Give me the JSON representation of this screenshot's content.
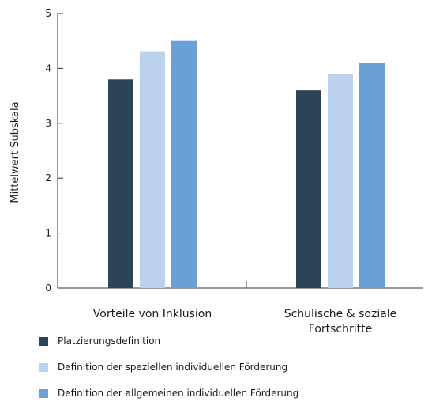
{
  "chart_data": {
    "type": "bar",
    "title": "",
    "ylabel": "Mittelwert Subskala",
    "xlabel": "",
    "ylim": [
      0,
      5
    ],
    "yticks": [
      0,
      1,
      2,
      3,
      4,
      5
    ],
    "categories": [
      [
        "Vorteile von Inklusion"
      ],
      [
        "Schulische & soziale",
        "Fortschritte"
      ]
    ],
    "series": [
      {
        "name": "Platzierungsdefinition",
        "color": "#2c4457",
        "values": [
          3.8,
          3.6
        ]
      },
      {
        "name": "Definition der speziellen individuellen Förderung",
        "color": "#bcd3ee",
        "values": [
          4.3,
          3.9
        ]
      },
      {
        "name": "Definition der allgemeinen individuellen Förderung",
        "color": "#6aa0d6",
        "values": [
          4.5,
          4.1
        ]
      }
    ],
    "grid": false,
    "legend_position": "bottom-left"
  }
}
